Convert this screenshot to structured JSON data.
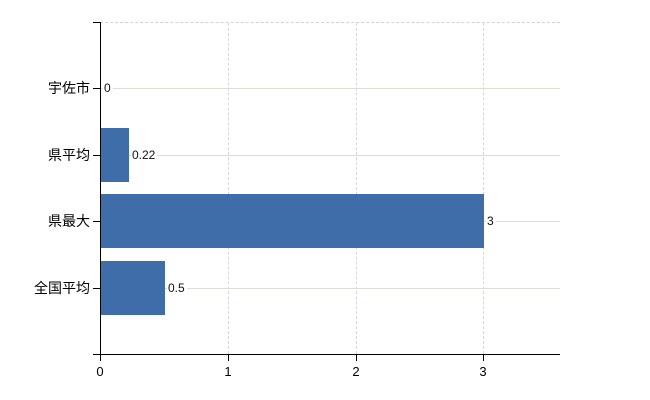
{
  "chart_data": {
    "type": "bar",
    "orientation": "horizontal",
    "title": "",
    "xlabel": "",
    "ylabel": "",
    "categories": [
      "宇佐市",
      "県平均",
      "県最大",
      "全国平均"
    ],
    "values": [
      0,
      0.22,
      3,
      0.5
    ],
    "value_labels": [
      "0",
      "0.22",
      "3",
      "0.5"
    ],
    "xlim": [
      0,
      3.6
    ],
    "x_ticks": [
      0,
      1,
      2,
      3
    ],
    "x_tick_labels": [
      "0",
      "1",
      "2",
      "3"
    ],
    "grid": true,
    "legend": false,
    "colors": {
      "bar": "#3e6da9",
      "axis": "#000000",
      "h_gridline": "#d9e1d5",
      "v_gridline": "#d6d4da",
      "top_border": "#d2d2d6",
      "background": "#ffffff",
      "text": "#000000"
    }
  }
}
